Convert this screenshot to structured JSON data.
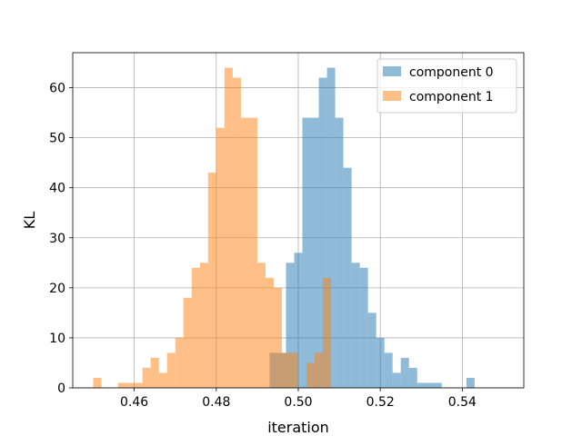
{
  "chart_data": {
    "type": "histogram",
    "xlabel": "iteration",
    "ylabel": "KL",
    "xlim": [
      0.445,
      0.555
    ],
    "ylim": [
      0,
      67
    ],
    "grid": true,
    "legend_position": "upper-right",
    "xticks": [
      "0.46",
      "0.48",
      "0.50",
      "0.52",
      "0.54"
    ],
    "xtick_values": [
      0.46,
      0.48,
      0.5,
      0.52,
      0.54
    ],
    "yticks": [
      "0",
      "10",
      "20",
      "30",
      "40",
      "50",
      "60"
    ],
    "ytick_values": [
      0,
      10,
      20,
      30,
      40,
      50,
      60
    ],
    "series": [
      {
        "name": "component 0",
        "color": "#1f77b4",
        "opacity": 0.5,
        "bin_start": 0.493,
        "bin_width": 0.002,
        "counts": [
          7,
          7,
          25,
          27,
          54,
          54,
          62,
          64,
          54,
          44,
          25,
          24,
          15,
          10,
          7,
          3,
          6,
          4,
          1,
          1,
          1,
          0,
          0,
          0,
          2
        ]
      },
      {
        "name": "component 1",
        "color": "#ff7f0e",
        "opacity": 0.5,
        "bin_start": 0.45,
        "bin_width": 0.002,
        "counts": [
          2,
          0,
          0,
          1,
          1,
          1,
          4,
          6,
          3,
          7,
          10,
          18,
          24,
          25,
          43,
          52,
          64,
          62,
          54,
          54,
          25,
          22,
          20,
          7,
          7,
          0,
          5,
          7,
          22
        ]
      }
    ]
  }
}
